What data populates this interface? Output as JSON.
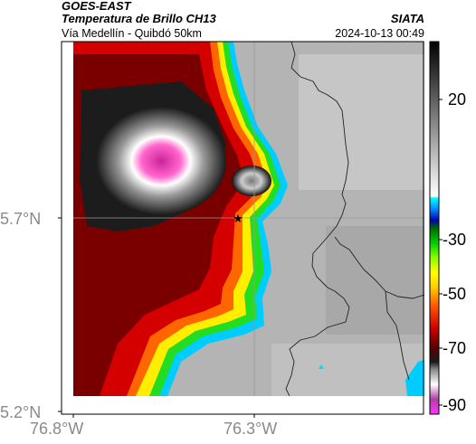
{
  "header": {
    "satellite": "GOES-EAST",
    "product": "Temperatura de Brillo CH13",
    "agency": "SIATA",
    "location": "Vía Medellín - Quibdó 50km",
    "datetime": "2024-10-13 00:49"
  },
  "axes": {
    "x_ticks": [
      "76.8°W",
      "76.3°W"
    ],
    "y_ticks": [
      "5.7°N",
      "5.2°N"
    ]
  },
  "colorbar": {
    "ticks": [
      "20",
      "-30",
      "-50",
      "-70",
      "-90"
    ]
  },
  "marker": {
    "symbol": "★"
  }
}
